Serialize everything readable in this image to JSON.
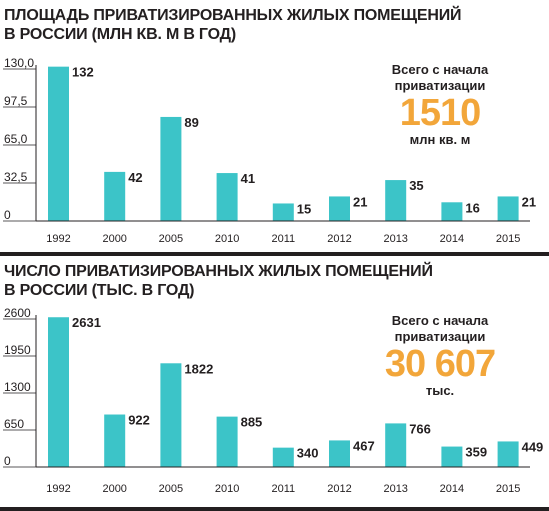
{
  "accent_color": "#3cc4c8",
  "highlight_color": "#f2a63a",
  "charts": [
    {
      "title_line1": "ПЛОЩАДЬ ПРИВАТИЗИРОВАННЫХ ЖИЛЫХ ПОМЕЩЕНИЙ",
      "title_line2": "В РОССИИ (МЛН КВ. М В ГОД)",
      "callout_label1": "Всего с начала",
      "callout_label2": "приватизации",
      "callout_value": "1510",
      "callout_unit": "млн кв. м"
    },
    {
      "title_line1": "ЧИСЛО ПРИВАТИЗИРОВАННЫХ ЖИЛЫХ ПОМЕЩЕНИЙ",
      "title_line2": "В РОССИИ (ТЫС. В ГОД)",
      "callout_label1": "Всего с начала",
      "callout_label2": "приватизации",
      "callout_value": "30 607",
      "callout_unit": "тыс."
    }
  ],
  "chart_data": [
    {
      "type": "bar",
      "title": "ПЛОЩАДЬ ПРИВАТИЗИРОВАННЫХ ЖИЛЫХ ПОМЕЩЕНИЙ В РОССИИ (МЛН КВ. М В ГОД)",
      "categories": [
        "1992",
        "2000",
        "2005",
        "2010",
        "2011",
        "2012",
        "2013",
        "2014",
        "2015"
      ],
      "values": [
        132,
        42,
        89,
        41,
        15,
        21,
        35,
        16,
        21
      ],
      "data_labels": [
        "132",
        "42",
        "89",
        "41",
        "15",
        "21",
        "35",
        "16",
        "21"
      ],
      "yticks": [
        "0",
        "32,5",
        "65,0",
        "97,5",
        "130,0"
      ],
      "ytick_values": [
        0,
        32.5,
        65,
        97.5,
        130
      ],
      "ylim": [
        0,
        130
      ],
      "grid": false,
      "legend": "none"
    },
    {
      "type": "bar",
      "title": "ЧИСЛО ПРИВАТИЗИРОВАННЫХ ЖИЛЫХ ПОМЕЩЕНИЙ В РОССИИ (ТЫС. В ГОД)",
      "categories": [
        "1992",
        "2000",
        "2005",
        "2010",
        "2011",
        "2012",
        "2013",
        "2014",
        "2015"
      ],
      "values": [
        2631,
        922,
        1822,
        885,
        340,
        467,
        766,
        359,
        449
      ],
      "data_labels": [
        "2631",
        "922",
        "1822",
        "885",
        "340",
        "467",
        "766",
        "359",
        "449"
      ],
      "yticks": [
        "0",
        "650",
        "1300",
        "1950",
        "2600"
      ],
      "ytick_values": [
        0,
        650,
        1300,
        1950,
        2600
      ],
      "ylim": [
        0,
        2600
      ],
      "grid": false,
      "legend": "none"
    }
  ]
}
